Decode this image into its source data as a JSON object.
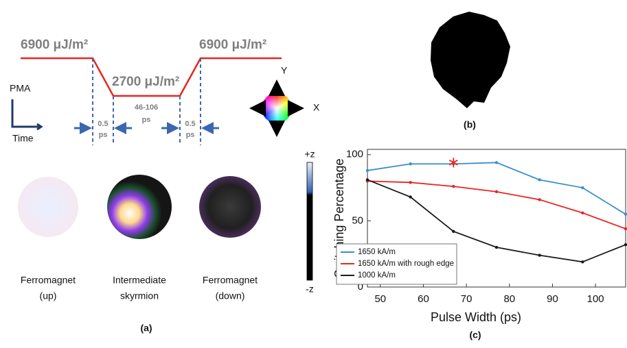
{
  "panel_a": {
    "high_level_left": "6900 μJ/m²",
    "high_level_right": "6900 μJ/m²",
    "low_level": "2700 μJ/m²",
    "axis_y": "PMA",
    "axis_x": "Time",
    "pulse_width": "46-106",
    "pulse_width_unit": "ps",
    "ramp_left": "0.5",
    "ramp_left_unit": "ps",
    "ramp_right": "0.5",
    "ramp_right_unit": "ps",
    "wheel_y": "Y",
    "wheel_x": "X",
    "colorbar_top": "+z",
    "colorbar_bottom": "-z",
    "states": [
      {
        "line1": "Ferromagnet",
        "line2": "(up)"
      },
      {
        "line1": "Intermediate",
        "line2": "skyrmion"
      },
      {
        "line1": "Ferromagnet",
        "line2": "(down)"
      }
    ],
    "label": "(a)"
  },
  "panel_b": {
    "label": "(b)"
  },
  "panel_c": {
    "label": "(c)"
  },
  "chart_data": {
    "type": "line",
    "x_label": "Pulse Width (ps)",
    "y_label": "Switching Percentage",
    "x": [
      47,
      57,
      67,
      77,
      87,
      97,
      107
    ],
    "series": [
      {
        "name": "1650 kA/m",
        "color": "#3a8fc8",
        "values": [
          88,
          93,
          93,
          94,
          81,
          75,
          55
        ]
      },
      {
        "name": "1650 kA/m with rough edge",
        "color": "#e8241f",
        "values": [
          80,
          79,
          76,
          72,
          66,
          56,
          44
        ]
      },
      {
        "name": "1000 kA/m",
        "color": "#1a1a1a",
        "values": [
          81,
          68,
          42,
          30,
          24,
          19,
          32
        ]
      }
    ],
    "highlight": {
      "x": 67,
      "y": 94,
      "color": "#e8241f"
    },
    "xlim": [
      47,
      107
    ],
    "ylim": [
      0,
      104
    ],
    "xticks": [
      50,
      60,
      70,
      80,
      90,
      100
    ],
    "yticks": [
      0,
      50,
      100
    ],
    "legend": "lower left"
  }
}
